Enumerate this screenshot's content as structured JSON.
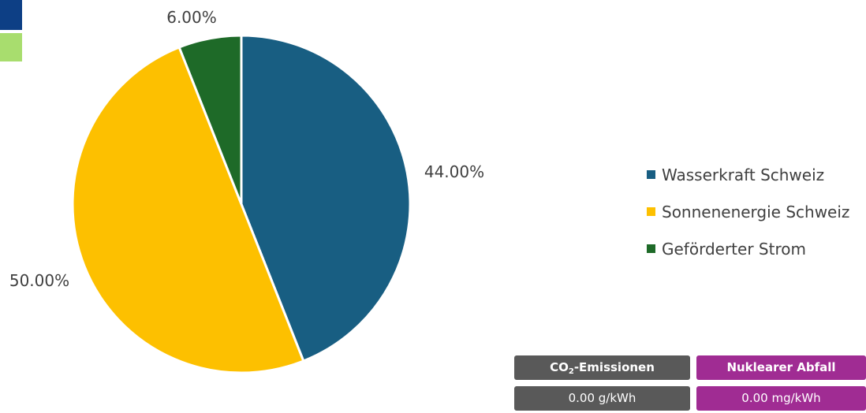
{
  "colors": {
    "wasserkraft": "#185e82",
    "sonnenenergie": "#fdc000",
    "gefoerdert": "#1e6a28",
    "swatch_top": "#0d3f85",
    "swatch_bottom": "#a8dd6e",
    "co2_box": "#595959",
    "nuklear_box": "#a02c93"
  },
  "chart_data": {
    "type": "pie",
    "slices": [
      {
        "name": "Wasserkraft Schweiz",
        "value": 44.0,
        "label": "44.00%",
        "color": "#185e82"
      },
      {
        "name": "Sonnenenergie Schweiz",
        "value": 50.0,
        "label": "50.00%",
        "color": "#fdc000"
      },
      {
        "name": "Geförderter Strom",
        "value": 6.0,
        "label": "6.00%",
        "color": "#1e6a28"
      }
    ],
    "legend_placement": "right"
  },
  "legend": {
    "items": [
      {
        "label": "Wasserkraft Schweiz"
      },
      {
        "label": "Sonnenenergie Schweiz"
      },
      {
        "label": "Geförderter Strom"
      }
    ]
  },
  "info": {
    "co2_prefix": "CO",
    "co2_sub": "2",
    "co2_suffix": "-Emissionen",
    "co2_value": "0.00 g/kWh",
    "nuklear_label": "Nuklearer Abfall",
    "nuklear_value": "0.00 mg/kWh"
  }
}
